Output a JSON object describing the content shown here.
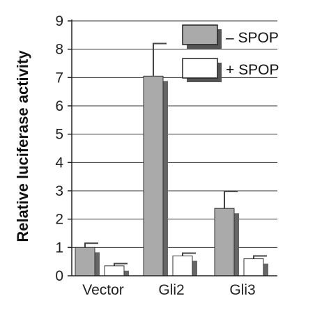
{
  "chart_data": {
    "type": "bar",
    "ylabel": "Relative luciferase activity",
    "ylim": [
      0,
      9
    ],
    "yticks": [
      "0",
      "1",
      "2",
      "3",
      "4",
      "5",
      "6",
      "7",
      "8",
      "9"
    ],
    "grid": "horizontal",
    "legend_position": "top-right",
    "categories": [
      "Vector",
      "Gli2",
      "Gli3"
    ],
    "series": [
      {
        "name": "– SPOP",
        "values": [
          1.0,
          7.05,
          2.38
        ],
        "errors": [
          0.15,
          1.15,
          0.6
        ],
        "color": "#aaaaaa"
      },
      {
        "name": "+ SPOP",
        "values": [
          0.35,
          0.7,
          0.6
        ],
        "errors": [
          0.08,
          0.1,
          0.1
        ],
        "color": "#ffffff"
      }
    ]
  }
}
